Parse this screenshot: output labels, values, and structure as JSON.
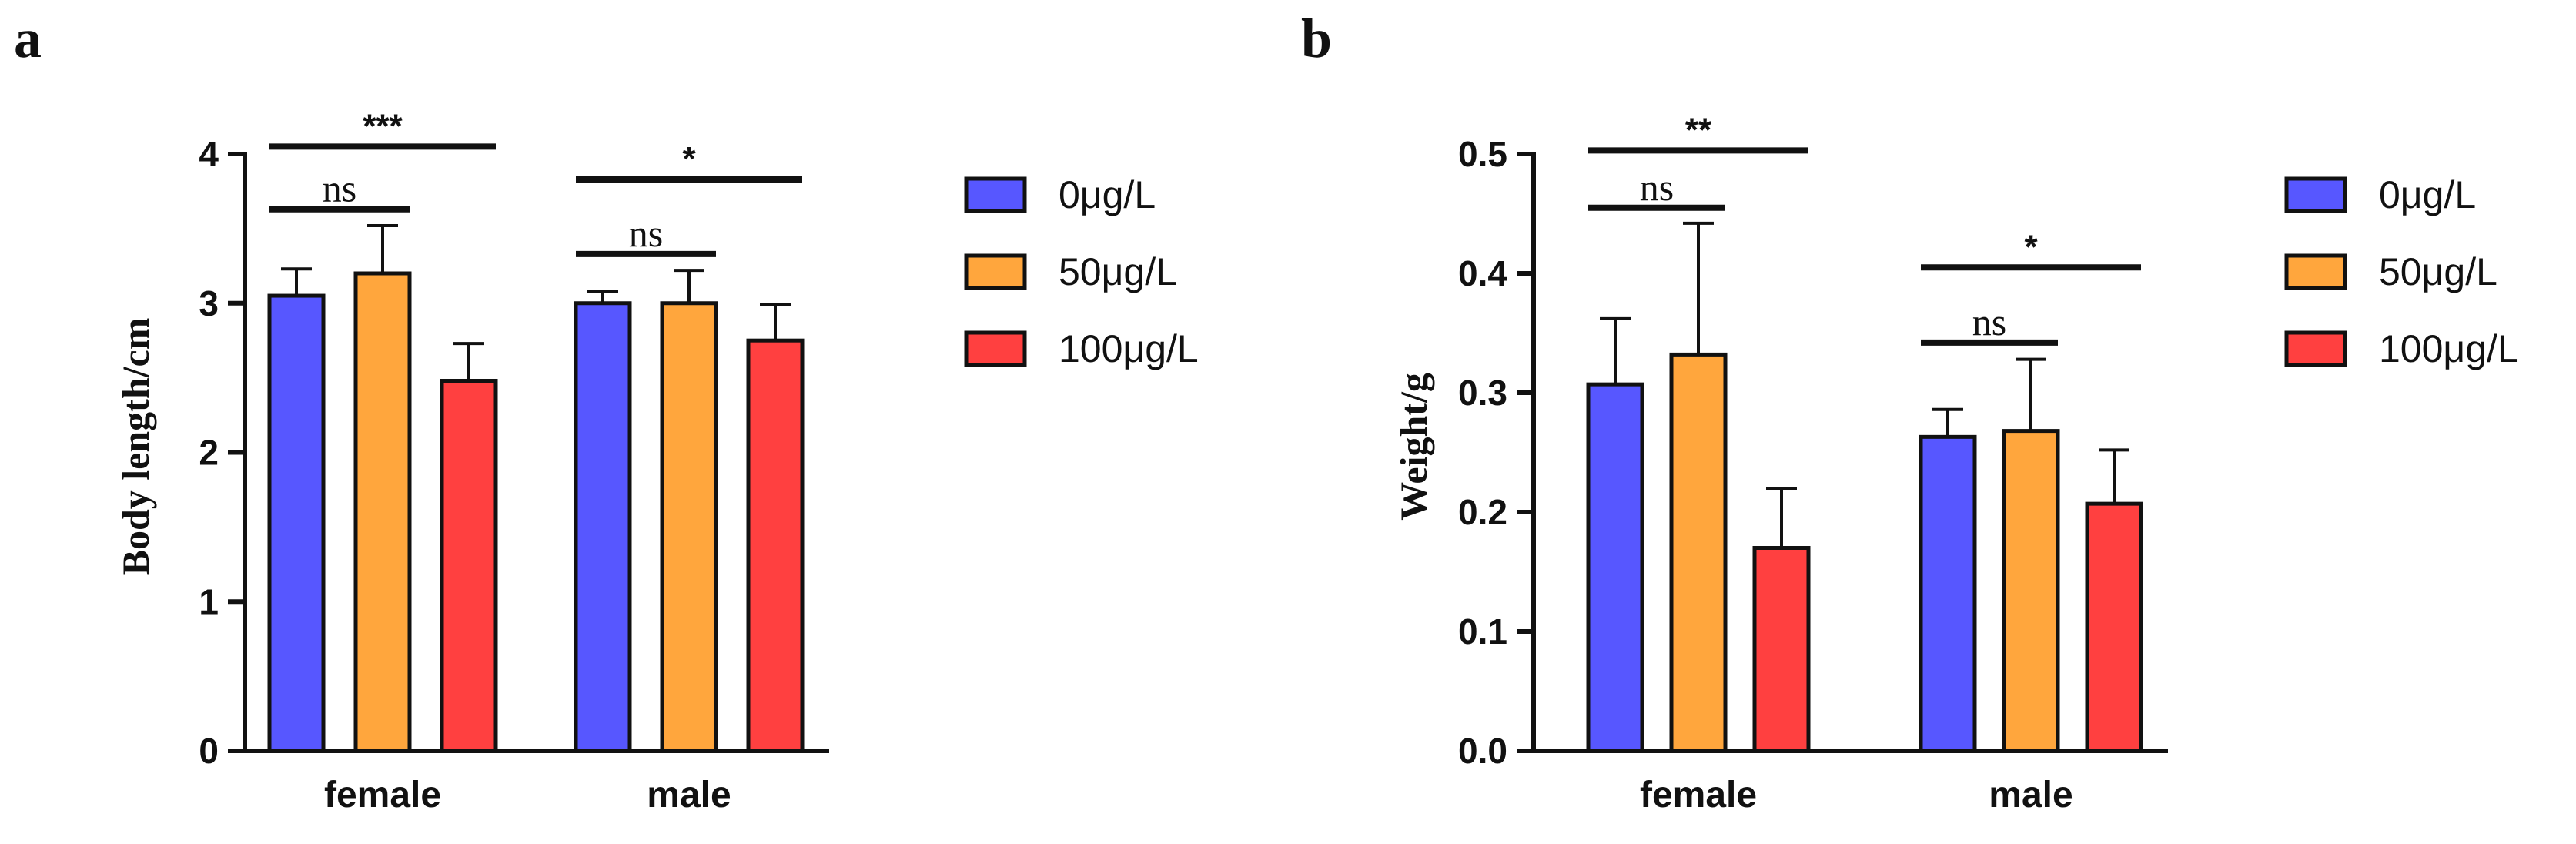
{
  "chart_data": [
    {
      "type": "bar",
      "panel": "a",
      "title": "",
      "xlabel": "",
      "ylabel": "Body length/cm",
      "ylim": [
        0,
        4
      ],
      "yticks": [
        0,
        1,
        2,
        3,
        4
      ],
      "ytick_labels": [
        "0",
        "1",
        "2",
        "3",
        "4"
      ],
      "categories": [
        "female",
        "male"
      ],
      "series": [
        {
          "name": "0μg/L",
          "color": "#5757ff",
          "values": [
            3.05,
            3.0
          ],
          "errors": [
            0.18,
            0.08
          ]
        },
        {
          "name": "50μg/L",
          "color": "#ffa63d",
          "values": [
            3.2,
            3.0
          ],
          "errors": [
            0.32,
            0.22
          ]
        },
        {
          "name": "100μg/L",
          "color": "#ff4040",
          "values": [
            2.48,
            2.75
          ],
          "errors": [
            0.25,
            0.24
          ]
        }
      ],
      "significance": [
        {
          "category": "female",
          "from": 0,
          "to": 2,
          "label": "***",
          "y": 4.05
        },
        {
          "category": "female",
          "from": 0,
          "to": 1,
          "label": "ns",
          "y": 3.63
        },
        {
          "category": "male",
          "from": 0,
          "to": 2,
          "label": "*",
          "y": 3.83
        },
        {
          "category": "male",
          "from": 0,
          "to": 1,
          "label": "ns",
          "y": 3.33
        }
      ],
      "legend_position": "right"
    },
    {
      "type": "bar",
      "panel": "b",
      "title": "",
      "xlabel": "",
      "ylabel": "Weight/g",
      "ylim": [
        0,
        0.5
      ],
      "yticks": [
        0,
        0.1,
        0.2,
        0.3,
        0.4,
        0.5
      ],
      "ytick_labels": [
        "0.0",
        "0.1",
        "0.2",
        "0.3",
        "0.4",
        "0.5"
      ],
      "categories": [
        "female",
        "male"
      ],
      "series": [
        {
          "name": "0μg/L",
          "color": "#5757ff",
          "values": [
            0.307,
            0.263
          ],
          "errors": [
            0.055,
            0.023
          ]
        },
        {
          "name": "50μg/L",
          "color": "#ffa63d",
          "values": [
            0.332,
            0.268
          ],
          "errors": [
            0.11,
            0.06
          ]
        },
        {
          "name": "100μg/L",
          "color": "#ff4040",
          "values": [
            0.17,
            0.207
          ],
          "errors": [
            0.05,
            0.045
          ]
        }
      ],
      "significance": [
        {
          "category": "female",
          "from": 0,
          "to": 2,
          "label": "**",
          "y": 0.503
        },
        {
          "category": "female",
          "from": 0,
          "to": 1,
          "label": "ns",
          "y": 0.455
        },
        {
          "category": "male",
          "from": 0,
          "to": 2,
          "label": "*",
          "y": 0.405
        },
        {
          "category": "male",
          "from": 0,
          "to": 1,
          "label": "ns",
          "y": 0.342
        }
      ],
      "legend_position": "right"
    }
  ]
}
